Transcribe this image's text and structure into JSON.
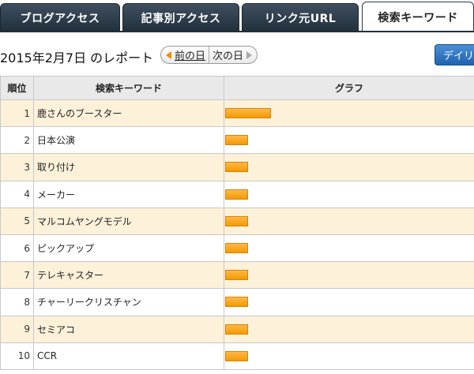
{
  "tabs": [
    {
      "label": "ブログアクセス",
      "active": false
    },
    {
      "label": "記事別アクセス",
      "active": false
    },
    {
      "label": "リンク元URL",
      "active": false
    },
    {
      "label": "検索キーワード",
      "active": true
    }
  ],
  "report": {
    "title": "2015年2月7日 のレポート",
    "prev_label": "前の日",
    "next_label": "次の日",
    "daily_label": "デイリー"
  },
  "table": {
    "headers": {
      "rank": "順位",
      "keyword": "検索キーワード",
      "graph": "グラフ"
    },
    "rows": [
      {
        "rank": "1",
        "keyword": "鹿さんのブースター",
        "value": 2
      },
      {
        "rank": "2",
        "keyword": "日本公演",
        "value": 1
      },
      {
        "rank": "3",
        "keyword": "取り付け",
        "value": 1
      },
      {
        "rank": "4",
        "keyword": "メーカー",
        "value": 1
      },
      {
        "rank": "5",
        "keyword": "マルコムヤングモデル",
        "value": 1
      },
      {
        "rank": "6",
        "keyword": "ピックアップ",
        "value": 1
      },
      {
        "rank": "7",
        "keyword": "テレキャスター",
        "value": 1
      },
      {
        "rank": "8",
        "keyword": "チャーリークリスチャン",
        "value": 1
      },
      {
        "rank": "9",
        "keyword": "セミアコ",
        "value": 1
      },
      {
        "rank": "10",
        "keyword": "CCR",
        "value": 1
      }
    ]
  },
  "colors": {
    "tab_bg": "#2c3a48",
    "row_alt": "#fdf1d9",
    "bar": "#f39a00",
    "daily_button": "#2a6fbf"
  }
}
